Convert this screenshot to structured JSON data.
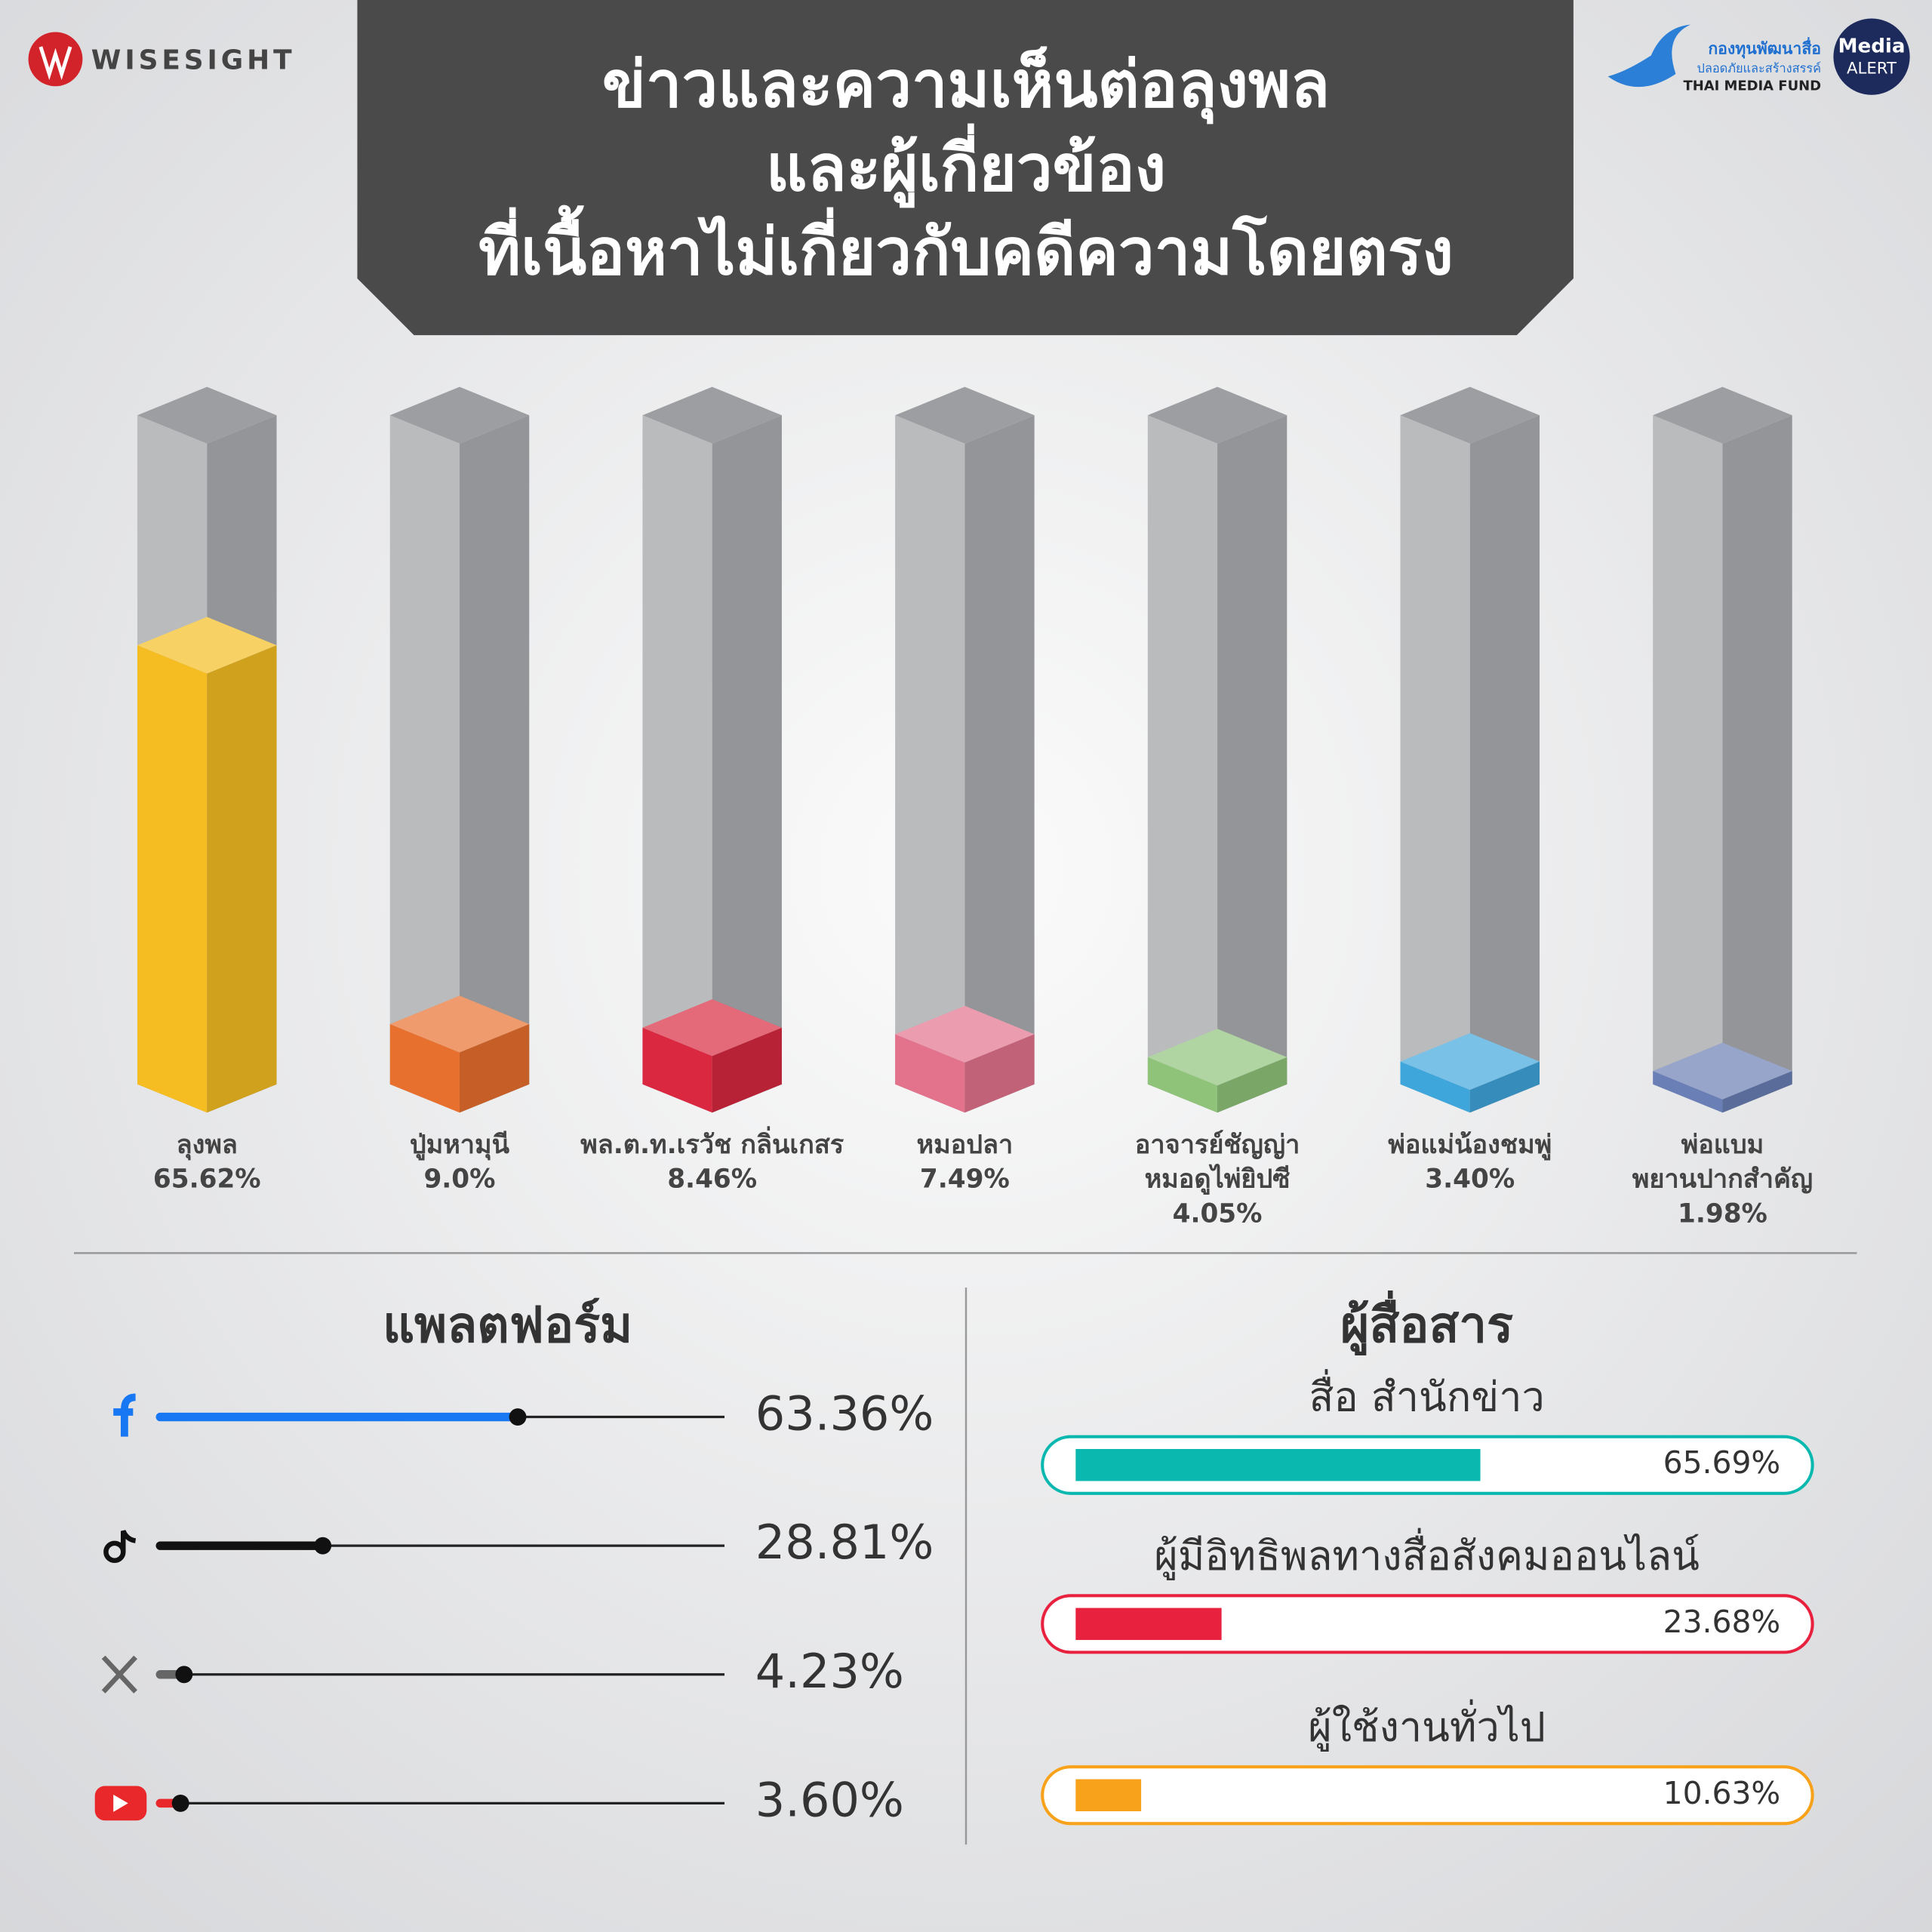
{
  "logos": {
    "wisesight": "WISESIGHT",
    "fund": [
      "กองทุนพัฒนาสื่อ",
      "ปลอดภัยและสร้างสรรค์",
      "THAI MEDIA FUND"
    ],
    "media_alert": [
      "Media",
      "ALERT"
    ]
  },
  "chart_data": [
    {
      "type": "column3d",
      "title": [
        "ข่าวและความเห็นต่อลุงพล",
        "และผู้เกี่ยวข้อง",
        "ที่เนื้อหาไม่เกี่ยวกับคดีความโดยตรง"
      ],
      "categories": [
        [
          "ลุงพล"
        ],
        [
          "ปู่มหามุนี"
        ],
        [
          "พล.ต.ท.เรวัช กลิ่นเกสร"
        ],
        [
          "หมอปลา"
        ],
        [
          "อาจารย์ชัญญ่า",
          "หมอดูไพ่ยิปซี"
        ],
        [
          "พ่อแม่น้องชมพู่"
        ],
        [
          "พ่อแบม",
          "พยานปากสำคัญ"
        ]
      ],
      "values": [
        65.62,
        9.0,
        8.46,
        7.49,
        4.05,
        3.4,
        1.98
      ],
      "value_labels": [
        "65.62%",
        "9.0%",
        "8.46%",
        "7.49%",
        "4.05%",
        "3.40%",
        "1.98%"
      ],
      "colors": [
        "#f5bd22",
        "#e8702e",
        "#d9283f",
        "#e3738d",
        "#8fc37a",
        "#3fa6dc",
        "#6a7fb5"
      ],
      "ylim": [
        0,
        100
      ]
    },
    {
      "type": "slider",
      "title": "แพลตฟอร์ม",
      "categories": [
        null,
        null,
        null,
        null
      ],
      "values": [
        63.36,
        28.81,
        4.23,
        3.6
      ],
      "value_labels": [
        "63.36%",
        "28.81%",
        "4.23%",
        "3.60%"
      ],
      "colors": [
        "#1877f2",
        "#111111",
        "#666666",
        "#e8282b"
      ],
      "xlim": [
        0,
        100
      ]
    },
    {
      "type": "pillbar",
      "title": "ผู้สื่อสาร",
      "categories": [
        "สื่อ สำนักข่าว",
        "ผู้มีอิทธิพลทางสื่อสังคมออนไลน์",
        "ผู้ใช้งานทั่วไป"
      ],
      "values": [
        65.69,
        23.68,
        10.63
      ],
      "value_labels": [
        "65.69%",
        "23.68%",
        "10.63%"
      ],
      "colors": [
        "#0bb8b0",
        "#e8213f",
        "#f7a21a"
      ],
      "xlim": [
        0,
        100
      ]
    }
  ]
}
